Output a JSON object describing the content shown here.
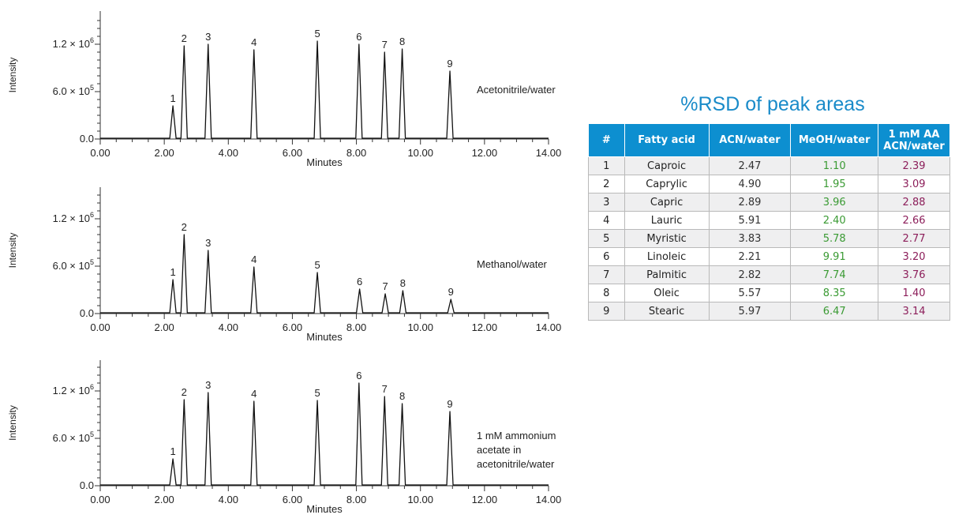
{
  "charts": [
    {
      "type": "line",
      "ylabel": "Intensity",
      "xlabel": "Minutes",
      "annotation": [
        "Acetonitrile/water"
      ],
      "xlim": [
        0,
        14
      ],
      "ylim": [
        0,
        1500000
      ],
      "x_ticks": [
        "0.00",
        "2.00",
        "4.00",
        "6.00",
        "8.00",
        "10.00",
        "12.00",
        "14.00"
      ],
      "y_ticks": [
        {
          "value": 0,
          "label": "0.0"
        },
        {
          "value": 600000,
          "label": "6.0 × 10",
          "exp": "5"
        },
        {
          "value": 1200000,
          "label": "1.2 × 10",
          "exp": "6"
        }
      ],
      "peaks": [
        {
          "label": "1",
          "x": 2.27,
          "y": 420000
        },
        {
          "label": "2",
          "x": 2.62,
          "y": 1180000
        },
        {
          "label": "3",
          "x": 3.37,
          "y": 1200000
        },
        {
          "label": "4",
          "x": 4.8,
          "y": 1130000
        },
        {
          "label": "5",
          "x": 6.78,
          "y": 1240000
        },
        {
          "label": "6",
          "x": 8.08,
          "y": 1200000
        },
        {
          "label": "7",
          "x": 8.88,
          "y": 1100000
        },
        {
          "label": "8",
          "x": 9.43,
          "y": 1140000
        },
        {
          "label": "9",
          "x": 10.92,
          "y": 860000
        }
      ]
    },
    {
      "type": "line",
      "ylabel": "Intensity",
      "xlabel": "Minutes",
      "annotation": [
        "Methanol/water"
      ],
      "xlim": [
        0,
        14
      ],
      "ylim": [
        0,
        1500000
      ],
      "x_ticks": [
        "0.00",
        "2.00",
        "4.00",
        "6.00",
        "8.00",
        "10.00",
        "12.00",
        "14.00"
      ],
      "y_ticks": [
        {
          "value": 0,
          "label": "0.0"
        },
        {
          "value": 600000,
          "label": "6.0 × 10",
          "exp": "5"
        },
        {
          "value": 1200000,
          "label": "1.2 × 10",
          "exp": "6"
        }
      ],
      "peaks": [
        {
          "label": "1",
          "x": 2.27,
          "y": 430000
        },
        {
          "label": "2",
          "x": 2.62,
          "y": 1000000
        },
        {
          "label": "3",
          "x": 3.37,
          "y": 800000
        },
        {
          "label": "4",
          "x": 4.8,
          "y": 590000
        },
        {
          "label": "5",
          "x": 6.78,
          "y": 520000
        },
        {
          "label": "6",
          "x": 8.1,
          "y": 310000
        },
        {
          "label": "7",
          "x": 8.9,
          "y": 250000
        },
        {
          "label": "8",
          "x": 9.45,
          "y": 290000
        },
        {
          "label": "9",
          "x": 10.95,
          "y": 180000
        }
      ]
    },
    {
      "type": "line",
      "ylabel": "Intensity",
      "xlabel": "Minutes",
      "annotation": [
        "1 mM ammonium",
        "acetate in",
        "acetonitrile/water"
      ],
      "xlim": [
        0,
        14
      ],
      "ylim": [
        0,
        1500000
      ],
      "x_ticks": [
        "0.00",
        "2.00",
        "4.00",
        "6.00",
        "8.00",
        "10.00",
        "12.00",
        "14.00"
      ],
      "y_ticks": [
        {
          "value": 0,
          "label": "0.0"
        },
        {
          "value": 600000,
          "label": "6.0 × 10",
          "exp": "5"
        },
        {
          "value": 1200000,
          "label": "1.2 × 10",
          "exp": "6"
        }
      ],
      "peaks": [
        {
          "label": "1",
          "x": 2.27,
          "y": 340000
        },
        {
          "label": "2",
          "x": 2.62,
          "y": 1090000
        },
        {
          "label": "3",
          "x": 3.37,
          "y": 1180000
        },
        {
          "label": "4",
          "x": 4.8,
          "y": 1070000
        },
        {
          "label": "5",
          "x": 6.78,
          "y": 1080000
        },
        {
          "label": "6",
          "x": 8.08,
          "y": 1300000
        },
        {
          "label": "7",
          "x": 8.88,
          "y": 1130000
        },
        {
          "label": "8",
          "x": 9.43,
          "y": 1040000
        },
        {
          "label": "9",
          "x": 10.92,
          "y": 940000
        }
      ]
    }
  ],
  "chart_data": {
    "type": "table",
    "title": "%RSD of peak areas",
    "columns": [
      "#",
      "Fatty acid",
      "ACN/water",
      "MeOH/water",
      "1 mM AA ACN/water"
    ],
    "column_lines": [
      [
        "#"
      ],
      [
        "Fatty acid"
      ],
      [
        "ACN/water"
      ],
      [
        "MeOH/water"
      ],
      [
        "1 mM AA",
        "ACN/water"
      ]
    ],
    "rows": [
      [
        "1",
        "Caproic",
        "2.47",
        "1.10",
        "2.39"
      ],
      [
        "2",
        "Caprylic",
        "4.90",
        "1.95",
        "3.09"
      ],
      [
        "3",
        "Capric",
        "2.89",
        "3.96",
        "2.88"
      ],
      [
        "4",
        "Lauric",
        "5.91",
        "2.40",
        "2.66"
      ],
      [
        "5",
        "Myristic",
        "3.83",
        "5.78",
        "2.77"
      ],
      [
        "6",
        "Linoleic",
        "2.21",
        "9.91",
        "3.20"
      ],
      [
        "7",
        "Palmitic",
        "2.82",
        "7.74",
        "3.76"
      ],
      [
        "8",
        "Oleic",
        "5.57",
        "8.35",
        "1.40"
      ],
      [
        "9",
        "Stearic",
        "5.97",
        "6.47",
        "3.14"
      ]
    ],
    "colors": {
      "title": "#1a8bc9",
      "header_bg": "#0d8fd0",
      "acn": "#333333",
      "meoh": "#3a9a33",
      "aa": "#8c1e5a"
    }
  }
}
